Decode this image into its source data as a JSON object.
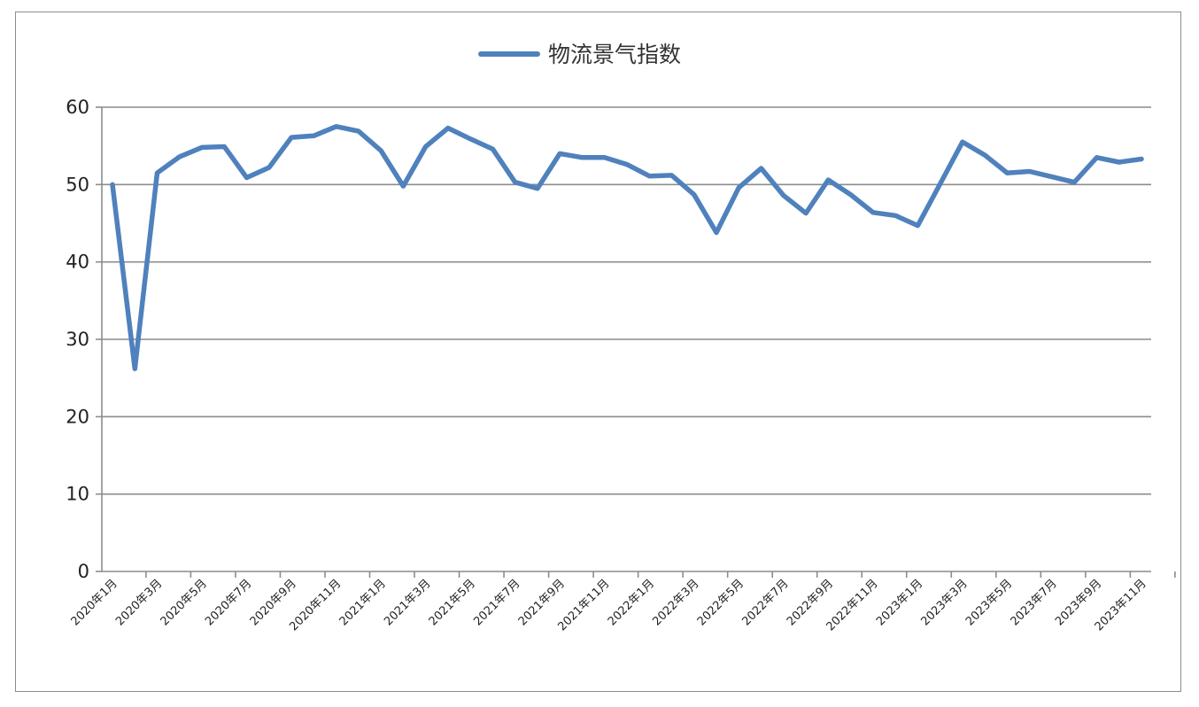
{
  "chart_data": {
    "type": "line",
    "title": "",
    "xlabel": "",
    "ylabel": "",
    "ylim": [
      0,
      60
    ],
    "yticks": [
      0,
      10,
      20,
      30,
      40,
      50,
      60
    ],
    "grid": true,
    "legend_position": "top-center",
    "x": [
      "2020年1月",
      "2020年2月",
      "2020年3月",
      "2020年4月",
      "2020年5月",
      "2020年6月",
      "2020年7月",
      "2020年8月",
      "2020年9月",
      "2020年10月",
      "2020年11月",
      "2020年12月",
      "2021年1月",
      "2021年2月",
      "2021年3月",
      "2021年4月",
      "2021年5月",
      "2021年6月",
      "2021年7月",
      "2021年8月",
      "2021年9月",
      "2021年10月",
      "2021年11月",
      "2021年12月",
      "2022年1月",
      "2022年2月",
      "2022年3月",
      "2022年4月",
      "2022年5月",
      "2022年6月",
      "2022年7月",
      "2022年8月",
      "2022年9月",
      "2022年10月",
      "2022年11月",
      "2022年12月",
      "2023年1月",
      "2023年2月",
      "2023年3月",
      "2023年4月",
      "2023年5月",
      "2023年6月",
      "2023年7月",
      "2023年8月",
      "2023年9月",
      "2023年10月",
      "2023年11月"
    ],
    "tick_labels": [
      "2020年1月",
      "2020年3月",
      "2020年5月",
      "2020年7月",
      "2020年9月",
      "2020年11月",
      "2021年1月",
      "2021年3月",
      "2021年5月",
      "2021年7月",
      "2021年9月",
      "2021年11月",
      "2022年1月",
      "2022年3月",
      "2022年5月",
      "2022年7月",
      "2022年9月",
      "2022年11月",
      "2023年1月",
      "2023年3月",
      "2023年5月",
      "2023年7月",
      "2023年9月",
      "2023年11月"
    ],
    "series": [
      {
        "name": "物流景气指数",
        "color": "#4f81bd",
        "values": [
          50.0,
          26.2,
          51.5,
          53.6,
          54.8,
          54.9,
          50.9,
          52.2,
          56.1,
          56.3,
          57.5,
          56.9,
          54.4,
          49.8,
          54.9,
          57.3,
          55.9,
          54.6,
          50.3,
          49.5,
          54.0,
          53.5,
          53.5,
          52.6,
          51.1,
          51.2,
          48.7,
          43.8,
          49.6,
          52.1,
          48.6,
          46.3,
          50.6,
          48.7,
          46.4,
          46.0,
          44.7,
          50.1,
          55.5,
          53.8,
          51.5,
          51.7,
          51.0,
          50.3,
          53.5,
          52.9,
          53.3
        ]
      }
    ]
  }
}
